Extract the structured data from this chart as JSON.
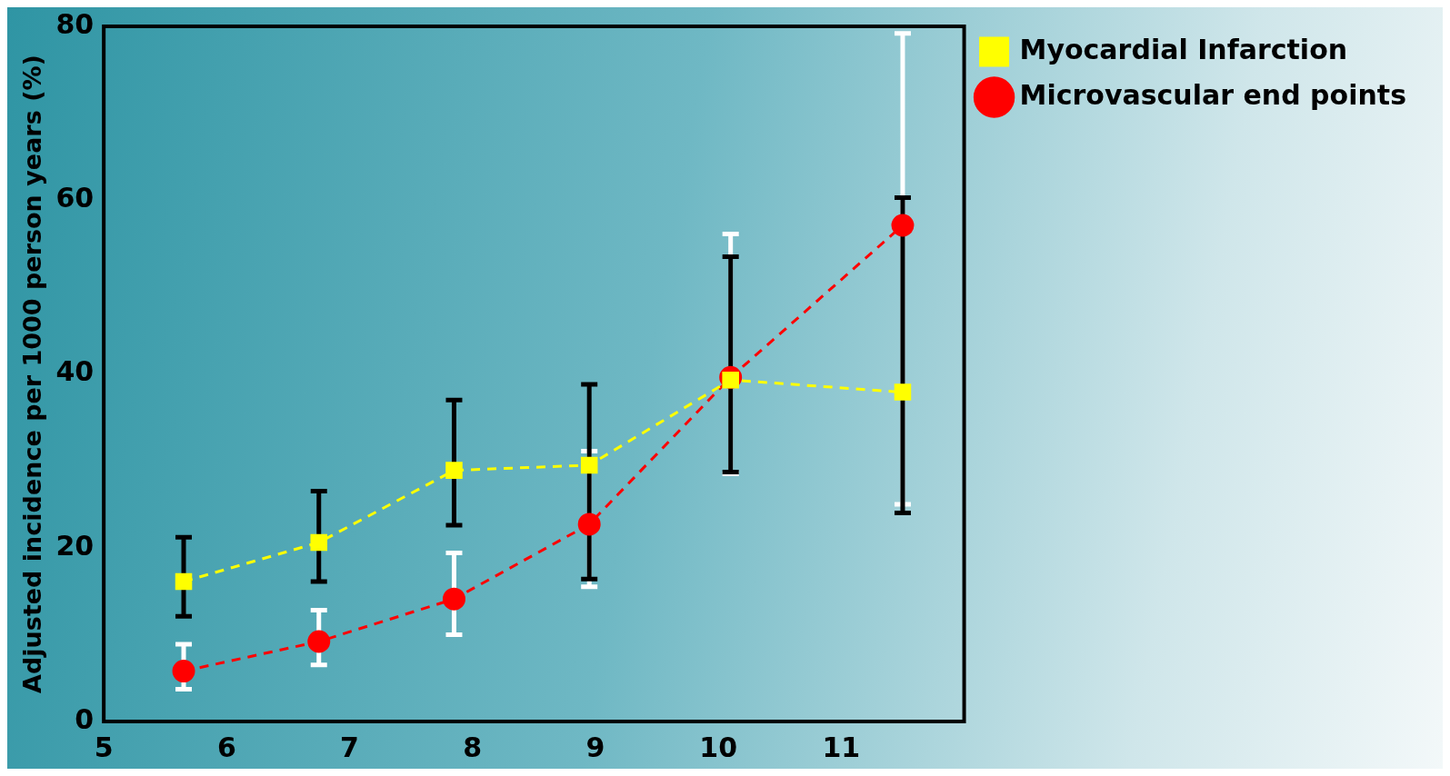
{
  "chart_data": {
    "type": "line",
    "ylabel": "Adjusted incidence per 1000 person years (%)",
    "xlim": [
      5,
      12
    ],
    "xticks": [
      5,
      6,
      7,
      8,
      9,
      10,
      11
    ],
    "ylim": [
      0,
      80
    ],
    "yticks": [
      0,
      20,
      40,
      60,
      80
    ],
    "grid": false,
    "legend": "top right",
    "line_style": "dashed",
    "series": [
      {
        "name": "Myocardial Infarction",
        "color": "#ffff00",
        "marker": "square",
        "x": [
          5.65,
          6.75,
          7.85,
          8.95,
          10.1,
          11.5
        ],
        "values": [
          16.1,
          20.6,
          28.9,
          29.5,
          39.3,
          37.9
        ],
        "errors": [
          [
            12.1,
            21.2
          ],
          [
            16.1,
            26.5
          ],
          [
            22.6,
            37.0
          ],
          [
            16.4,
            38.8
          ],
          [
            28.7,
            53.5
          ],
          [
            24.0,
            60.3
          ]
        ]
      },
      {
        "name": "Microvascular end points",
        "color": "#ff0000",
        "marker": "circle",
        "x": [
          5.65,
          6.75,
          7.85,
          8.95,
          10.1,
          11.5
        ],
        "values": [
          5.8,
          9.2,
          14.1,
          22.7,
          39.6,
          57.1
        ],
        "errors": [
          [
            3.7,
            8.9
          ],
          [
            6.5,
            12.8
          ],
          [
            10.0,
            19.4
          ],
          [
            15.5,
            31.1
          ],
          [
            28.5,
            56.1
          ],
          [
            25.0,
            79.2
          ]
        ]
      }
    ]
  }
}
